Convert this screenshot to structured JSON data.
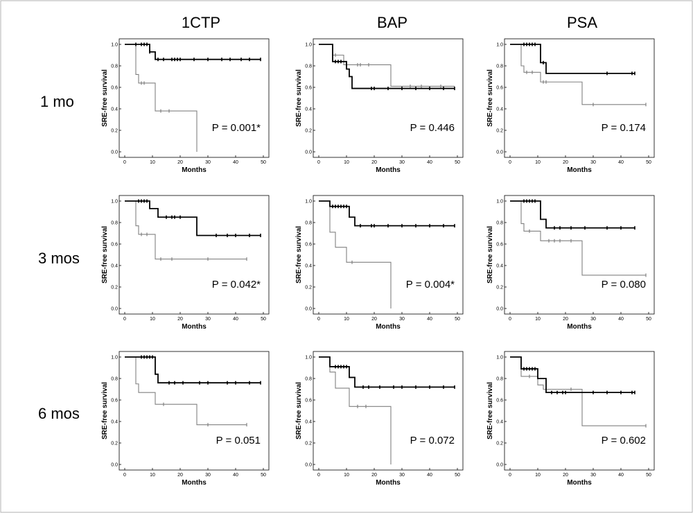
{
  "figure": {
    "column_titles": [
      "1CTP",
      "BAP",
      "PSA"
    ],
    "row_titles": [
      "1 mo",
      "3 mos",
      "6 mos"
    ],
    "line_colors": {
      "high": "#000000",
      "low": "#808080"
    }
  },
  "chart_data": [
    {
      "type": "line",
      "row": "1 mo",
      "column": "1CTP",
      "xlabel": "Months",
      "ylabel": "SRE-free survival",
      "xlim": [
        0,
        50
      ],
      "ylim": [
        0,
        1
      ],
      "xticks": [
        0,
        10,
        20,
        30,
        40,
        50
      ],
      "yticks": [
        0.0,
        0.2,
        0.4,
        0.6,
        0.8,
        1.0
      ],
      "annotation": "P = 0.001*",
      "series": [
        {
          "name": "",
          "style": "high",
          "x": [
            0,
            9,
            11,
            49
          ],
          "y": [
            1,
            0.93,
            0.86,
            0.86
          ],
          "censor_x": [
            4,
            6,
            7,
            8,
            9,
            12,
            14,
            17,
            18,
            19,
            20,
            25,
            30,
            35,
            38,
            42,
            45,
            49
          ]
        },
        {
          "name": "",
          "style": "low",
          "x": [
            0,
            4,
            5,
            11,
            26
          ],
          "y": [
            1,
            0.72,
            0.64,
            0.38,
            0
          ],
          "censor_x": [
            6,
            7,
            13,
            16
          ]
        }
      ]
    },
    {
      "type": "line",
      "row": "1 mo",
      "column": "BAP",
      "xlabel": "Months",
      "ylabel": "SRE-free survival",
      "xlim": [
        0,
        50
      ],
      "ylim": [
        0,
        1
      ],
      "xticks": [
        0,
        10,
        20,
        30,
        40,
        50
      ],
      "yticks": [
        0.0,
        0.2,
        0.4,
        0.6,
        0.8,
        1.0
      ],
      "annotation": "P = 0.446",
      "series": [
        {
          "name": "",
          "style": "high",
          "x": [
            0,
            5,
            10,
            11,
            12,
            49
          ],
          "y": [
            1,
            0.84,
            0.77,
            0.7,
            0.59,
            0.59
          ],
          "censor_x": [
            6,
            7,
            8,
            19,
            20,
            25,
            30,
            35,
            40,
            45,
            49
          ]
        },
        {
          "name": "",
          "style": "low",
          "x": [
            0,
            5,
            9,
            26,
            49
          ],
          "y": [
            1,
            0.9,
            0.81,
            0.61,
            0.61
          ],
          "censor_x": [
            6,
            10,
            14,
            15,
            18,
            33,
            37,
            44
          ]
        }
      ]
    },
    {
      "type": "line",
      "row": "1 mo",
      "column": "PSA",
      "xlabel": "Months",
      "ylabel": "SRE-free survival",
      "xlim": [
        0,
        50
      ],
      "ylim": [
        0,
        1
      ],
      "xticks": [
        0,
        10,
        20,
        30,
        40,
        50
      ],
      "yticks": [
        0.0,
        0.2,
        0.4,
        0.6,
        0.8,
        1.0
      ],
      "annotation": "P = 0.174",
      "series": [
        {
          "name": "",
          "style": "high",
          "x": [
            0,
            11,
            13,
            45
          ],
          "y": [
            1,
            0.83,
            0.73,
            0.73
          ],
          "censor_x": [
            5,
            6,
            7,
            8,
            9,
            12,
            35,
            44,
            45
          ]
        },
        {
          "name": "",
          "style": "low",
          "x": [
            0,
            4,
            5,
            11,
            26,
            49
          ],
          "y": [
            1,
            0.8,
            0.74,
            0.65,
            0.44,
            0.44
          ],
          "censor_x": [
            6,
            8,
            12,
            13,
            30,
            49
          ]
        }
      ]
    },
    {
      "type": "line",
      "row": "3 mos",
      "column": "1CTP",
      "xlabel": "Months",
      "ylabel": "SRE-free survival",
      "xlim": [
        0,
        50
      ],
      "ylim": [
        0,
        1
      ],
      "xticks": [
        0,
        10,
        20,
        30,
        40,
        50
      ],
      "yticks": [
        0.0,
        0.2,
        0.4,
        0.6,
        0.8,
        1.0
      ],
      "annotation": "P = 0.042*",
      "series": [
        {
          "name": "",
          "style": "high",
          "x": [
            0,
            9,
            12,
            26,
            49
          ],
          "y": [
            1,
            0.93,
            0.85,
            0.68,
            0.68
          ],
          "censor_x": [
            5,
            6,
            7,
            8,
            15,
            17,
            18,
            20,
            33,
            37,
            40,
            45,
            49
          ]
        },
        {
          "name": "",
          "style": "low",
          "x": [
            0,
            4,
            5,
            11,
            44
          ],
          "y": [
            1,
            0.77,
            0.69,
            0.46,
            0.46
          ],
          "censor_x": [
            6,
            8,
            13,
            17,
            30,
            44
          ]
        }
      ]
    },
    {
      "type": "line",
      "row": "3 mos",
      "column": "BAP",
      "xlabel": "Months",
      "ylabel": "SRE-free survival",
      "xlim": [
        0,
        50
      ],
      "ylim": [
        0,
        1
      ],
      "xticks": [
        0,
        10,
        20,
        30,
        40,
        50
      ],
      "yticks": [
        0.0,
        0.2,
        0.4,
        0.6,
        0.8,
        1.0
      ],
      "annotation": "P = 0.004*",
      "series": [
        {
          "name": "",
          "style": "high",
          "x": [
            0,
            4,
            11,
            13,
            49
          ],
          "y": [
            1,
            0.95,
            0.85,
            0.77,
            0.77
          ],
          "censor_x": [
            5,
            6,
            7,
            8,
            9,
            10,
            15,
            19,
            20,
            25,
            30,
            35,
            40,
            45,
            49
          ]
        },
        {
          "name": "",
          "style": "low",
          "x": [
            0,
            4,
            6,
            10,
            26
          ],
          "y": [
            1,
            0.71,
            0.57,
            0.43,
            0
          ],
          "censor_x": [
            12
          ]
        }
      ]
    },
    {
      "type": "line",
      "row": "3 mos",
      "column": "PSA",
      "xlabel": "Months",
      "ylabel": "SRE-free survival",
      "xlim": [
        0,
        50
      ],
      "ylim": [
        0,
        1
      ],
      "xticks": [
        0,
        10,
        20,
        30,
        40,
        50
      ],
      "yticks": [
        0.0,
        0.2,
        0.4,
        0.6,
        0.8,
        1.0
      ],
      "annotation": "P = 0.080",
      "series": [
        {
          "name": "",
          "style": "high",
          "x": [
            0,
            11,
            13,
            45
          ],
          "y": [
            1,
            0.83,
            0.75,
            0.75
          ],
          "censor_x": [
            5,
            6,
            7,
            8,
            9,
            16,
            18,
            22,
            27,
            35,
            40,
            45
          ]
        },
        {
          "name": "",
          "style": "low",
          "x": [
            0,
            4,
            5,
            11,
            26,
            49
          ],
          "y": [
            1,
            0.79,
            0.72,
            0.63,
            0.31,
            0.31
          ],
          "censor_x": [
            7,
            14,
            16,
            18,
            22,
            49
          ]
        }
      ]
    },
    {
      "type": "line",
      "row": "6 mos",
      "column": "1CTP",
      "xlabel": "Months",
      "ylabel": "SRE-free survival",
      "xlim": [
        0,
        50
      ],
      "ylim": [
        0,
        1
      ],
      "xticks": [
        0,
        10,
        20,
        30,
        40,
        50
      ],
      "yticks": [
        0.0,
        0.2,
        0.4,
        0.6,
        0.8,
        1.0
      ],
      "annotation": "P = 0.051",
      "series": [
        {
          "name": "",
          "style": "high",
          "x": [
            0,
            11,
            12,
            49
          ],
          "y": [
            1,
            0.84,
            0.76,
            0.76
          ],
          "censor_x": [
            6,
            7,
            8,
            9,
            10,
            16,
            18,
            21,
            27,
            30,
            37,
            40,
            45,
            49
          ]
        },
        {
          "name": "",
          "style": "low",
          "x": [
            0,
            4,
            5,
            11,
            26,
            44
          ],
          "y": [
            1,
            0.75,
            0.67,
            0.56,
            0.37,
            0.37
          ],
          "censor_x": [
            14,
            30,
            44
          ]
        }
      ]
    },
    {
      "type": "line",
      "row": "6 mos",
      "column": "BAP",
      "xlabel": "Months",
      "ylabel": "SRE-free survival",
      "xlim": [
        0,
        50
      ],
      "ylim": [
        0,
        1
      ],
      "xticks": [
        0,
        10,
        20,
        30,
        40,
        50
      ],
      "yticks": [
        0.0,
        0.2,
        0.4,
        0.6,
        0.8,
        1.0
      ],
      "annotation": "P = 0.072",
      "series": [
        {
          "name": "",
          "style": "high",
          "x": [
            0,
            4,
            11,
            13,
            49
          ],
          "y": [
            1,
            0.91,
            0.81,
            0.72,
            0.72
          ],
          "censor_x": [
            6,
            7,
            8,
            9,
            10,
            16,
            18,
            22,
            27,
            30,
            35,
            40,
            45,
            49
          ]
        },
        {
          "name": "",
          "style": "low",
          "x": [
            0,
            4,
            6,
            11,
            26
          ],
          "y": [
            1,
            0.86,
            0.71,
            0.54,
            0
          ],
          "censor_x": [
            14,
            17
          ]
        }
      ]
    },
    {
      "type": "line",
      "row": "6 mos",
      "column": "PSA",
      "xlabel": "Months",
      "ylabel": "SRE-free survival",
      "xlim": [
        0,
        50
      ],
      "ylim": [
        0,
        1
      ],
      "xticks": [
        0,
        10,
        20,
        30,
        40,
        50
      ],
      "yticks": [
        0.0,
        0.2,
        0.4,
        0.6,
        0.8,
        1.0
      ],
      "annotation": "P = 0.602",
      "series": [
        {
          "name": "",
          "style": "high",
          "x": [
            0,
            4,
            10,
            13,
            45
          ],
          "y": [
            1,
            0.89,
            0.8,
            0.67,
            0.67
          ],
          "censor_x": [
            5,
            6,
            7,
            8,
            9,
            15,
            17,
            19,
            20,
            30,
            35,
            40,
            44,
            45
          ]
        },
        {
          "name": "",
          "style": "low",
          "x": [
            0,
            4,
            10,
            12,
            26,
            49
          ],
          "y": [
            1,
            0.82,
            0.74,
            0.7,
            0.36,
            0.36
          ],
          "censor_x": [
            7,
            22,
            49
          ]
        }
      ]
    }
  ]
}
